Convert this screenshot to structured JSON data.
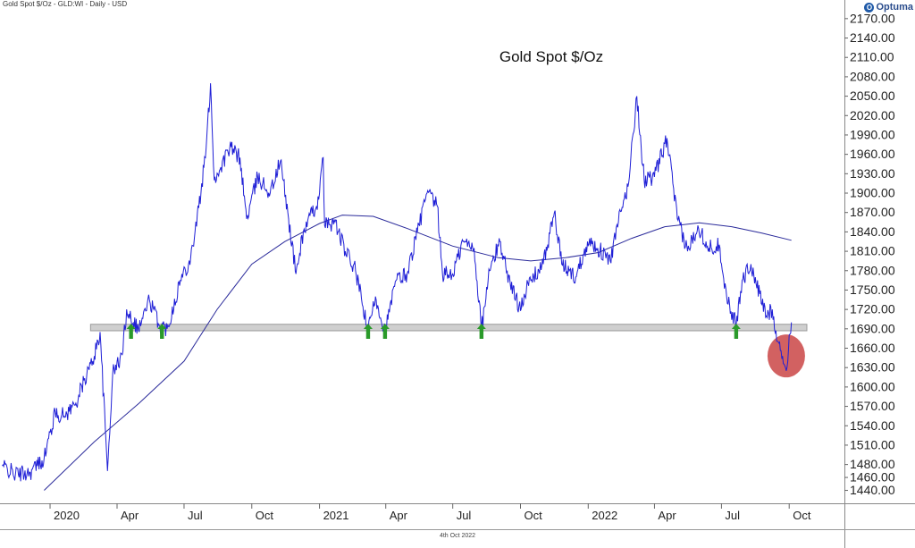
{
  "header": {
    "text": "Gold Spot $/Oz - GLD:WI - Daily - USD"
  },
  "logo": {
    "text": "Optuma"
  },
  "footer": {
    "date": "4th Oct 2022"
  },
  "colors": {
    "price": "#1f1fd6",
    "ma": "#2a2a9a",
    "band": "#cfcfcf",
    "arrow": "#2a9a2a",
    "circle": "#c73a3a"
  },
  "chart_data": {
    "type": "line",
    "title": "Gold Spot $/Oz",
    "y_ticks": [
      1440,
      1460,
      1480,
      1510,
      1540,
      1570,
      1600,
      1630,
      1660,
      1690,
      1720,
      1750,
      1780,
      1810,
      1840,
      1870,
      1900,
      1930,
      1960,
      1990,
      2020,
      2050,
      2080,
      2110,
      2140,
      2170
    ],
    "ylim": [
      1420,
      2185
    ],
    "x_ticks": [
      {
        "label": "2020",
        "date": "2020-01-01"
      },
      {
        "label": "Apr",
        "date": "2020-04-01"
      },
      {
        "label": "Jul",
        "date": "2020-07-01"
      },
      {
        "label": "Oct",
        "date": "2020-10-01"
      },
      {
        "label": "2021",
        "date": "2021-01-01"
      },
      {
        "label": "Apr",
        "date": "2021-04-01"
      },
      {
        "label": "Jul",
        "date": "2021-07-01"
      },
      {
        "label": "Oct",
        "date": "2021-10-01"
      },
      {
        "label": "2022",
        "date": "2022-01-01"
      },
      {
        "label": "Apr",
        "date": "2022-04-01"
      },
      {
        "label": "Jul",
        "date": "2022-07-01"
      },
      {
        "label": "Oct",
        "date": "2022-10-01"
      }
    ],
    "xlim": [
      "2019-10-25",
      "2022-12-15"
    ],
    "series": [
      {
        "kind": "price",
        "points": [
          [
            "2019-10-28",
            1478
          ],
          [
            "2019-11-15",
            1465
          ],
          [
            "2019-12-05",
            1468
          ],
          [
            "2019-12-24",
            1490
          ],
          [
            "2020-01-08",
            1560
          ],
          [
            "2020-01-20",
            1555
          ],
          [
            "2020-02-05",
            1575
          ],
          [
            "2020-02-20",
            1620
          ],
          [
            "2020-02-28",
            1640
          ],
          [
            "2020-03-09",
            1685
          ],
          [
            "2020-03-19",
            1470
          ],
          [
            "2020-03-26",
            1620
          ],
          [
            "2020-04-08",
            1650
          ],
          [
            "2020-04-14",
            1720
          ],
          [
            "2020-04-30",
            1690
          ],
          [
            "2020-05-15",
            1735
          ],
          [
            "2020-05-29",
            1695
          ],
          [
            "2020-06-08",
            1690
          ],
          [
            "2020-06-26",
            1765
          ],
          [
            "2020-07-10",
            1800
          ],
          [
            "2020-07-24",
            1900
          ],
          [
            "2020-07-31",
            1970
          ],
          [
            "2020-08-06",
            2070
          ],
          [
            "2020-08-11",
            1920
          ],
          [
            "2020-08-20",
            1940
          ],
          [
            "2020-09-01",
            1970
          ],
          [
            "2020-09-15",
            1955
          ],
          [
            "2020-09-24",
            1860
          ],
          [
            "2020-10-09",
            1925
          ],
          [
            "2020-10-26",
            1900
          ],
          [
            "2020-11-09",
            1950
          ],
          [
            "2020-11-20",
            1860
          ],
          [
            "2020-11-30",
            1775
          ],
          [
            "2020-12-10",
            1840
          ],
          [
            "2020-12-31",
            1890
          ],
          [
            "2021-01-06",
            1955
          ],
          [
            "2021-01-08",
            1850
          ],
          [
            "2021-01-22",
            1855
          ],
          [
            "2021-02-05",
            1810
          ],
          [
            "2021-02-19",
            1780
          ],
          [
            "2021-03-08",
            1685
          ],
          [
            "2021-03-18",
            1740
          ],
          [
            "2021-03-31",
            1685
          ],
          [
            "2021-04-15",
            1765
          ],
          [
            "2021-04-30",
            1775
          ],
          [
            "2021-05-14",
            1840
          ],
          [
            "2021-05-27",
            1900
          ],
          [
            "2021-06-10",
            1880
          ],
          [
            "2021-06-17",
            1775
          ],
          [
            "2021-07-01",
            1775
          ],
          [
            "2021-07-15",
            1825
          ],
          [
            "2021-07-30",
            1815
          ],
          [
            "2021-08-09",
            1690
          ],
          [
            "2021-08-20",
            1780
          ],
          [
            "2021-09-03",
            1825
          ],
          [
            "2021-09-17",
            1760
          ],
          [
            "2021-09-29",
            1725
          ],
          [
            "2021-10-15",
            1765
          ],
          [
            "2021-11-01",
            1790
          ],
          [
            "2021-11-16",
            1870
          ],
          [
            "2021-11-26",
            1790
          ],
          [
            "2021-12-15",
            1770
          ],
          [
            "2021-12-31",
            1825
          ],
          [
            "2022-01-14",
            1815
          ],
          [
            "2022-01-31",
            1795
          ],
          [
            "2022-02-11",
            1855
          ],
          [
            "2022-02-24",
            1910
          ],
          [
            "2022-03-08",
            2050
          ],
          [
            "2022-03-18",
            1920
          ],
          [
            "2022-04-01",
            1925
          ],
          [
            "2022-04-18",
            1985
          ],
          [
            "2022-05-02",
            1860
          ],
          [
            "2022-05-16",
            1810
          ],
          [
            "2022-05-30",
            1850
          ],
          [
            "2022-06-14",
            1815
          ],
          [
            "2022-06-28",
            1820
          ],
          [
            "2022-07-08",
            1740
          ],
          [
            "2022-07-21",
            1695
          ],
          [
            "2022-07-29",
            1765
          ],
          [
            "2022-08-10",
            1790
          ],
          [
            "2022-08-17",
            1760
          ],
          [
            "2022-08-31",
            1710
          ],
          [
            "2022-09-08",
            1720
          ],
          [
            "2022-09-16",
            1670
          ],
          [
            "2022-09-27",
            1625
          ],
          [
            "2022-10-04",
            1700
          ]
        ]
      },
      {
        "kind": "moving-average",
        "points": [
          [
            "2019-12-24",
            1440
          ],
          [
            "2020-03-01",
            1515
          ],
          [
            "2020-05-01",
            1575
          ],
          [
            "2020-07-01",
            1640
          ],
          [
            "2020-08-15",
            1720
          ],
          [
            "2020-10-01",
            1790
          ],
          [
            "2020-11-15",
            1825
          ],
          [
            "2021-01-01",
            1853
          ],
          [
            "2021-02-01",
            1866
          ],
          [
            "2021-03-15",
            1864
          ],
          [
            "2021-05-01",
            1845
          ],
          [
            "2021-07-01",
            1818
          ],
          [
            "2021-09-01",
            1800
          ],
          [
            "2021-10-15",
            1795
          ],
          [
            "2021-12-01",
            1800
          ],
          [
            "2022-01-15",
            1808
          ],
          [
            "2022-03-01",
            1830
          ],
          [
            "2022-04-15",
            1848
          ],
          [
            "2022-06-01",
            1854
          ],
          [
            "2022-07-15",
            1848
          ],
          [
            "2022-08-25",
            1838
          ],
          [
            "2022-10-04",
            1827
          ]
        ]
      }
    ],
    "support_band": {
      "y": [
        1687,
        1697
      ],
      "x": [
        "2020-02-25",
        "2022-10-25"
      ]
    },
    "arrows": [
      "2020-04-20",
      "2020-06-01",
      "2021-03-08",
      "2021-03-31",
      "2021-08-09",
      "2022-07-21"
    ],
    "highlight_circle": {
      "x": "2022-09-27",
      "y": 1648
    }
  }
}
